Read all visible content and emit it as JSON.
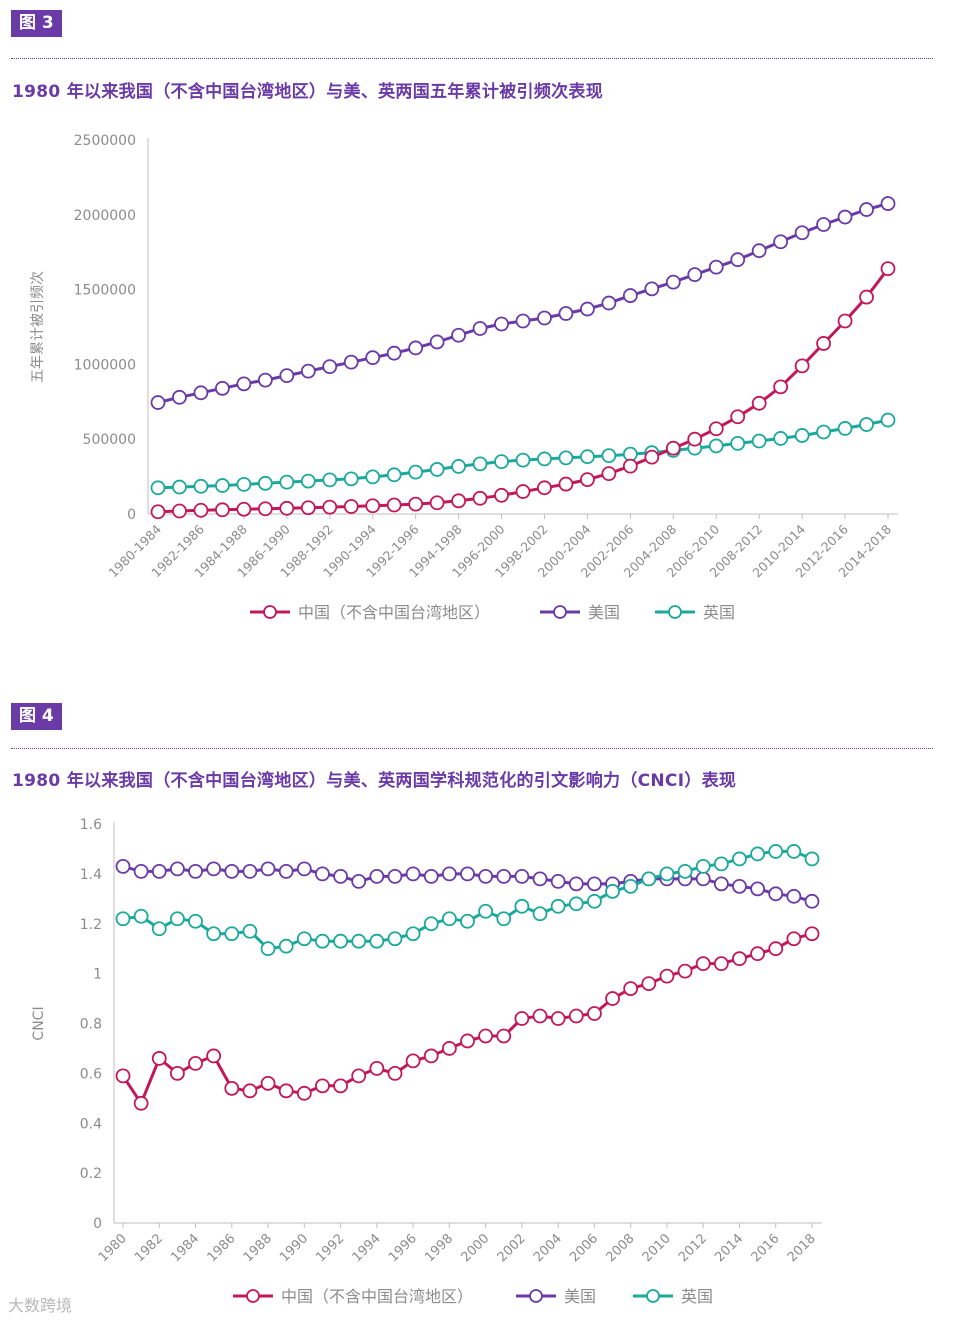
{
  "figure3": {
    "tag": "图 3",
    "title": "1980 年以来我国（不含中国台湾地区）与美、英两国五年累计被引频次表现"
  },
  "figure4": {
    "tag": "图 4",
    "title": "1980 年以来我国（不含中国台湾地区）与美、英两国学科规范化的引文影响力（CNCI）表现"
  },
  "watermark": "大数跨境",
  "colors": {
    "china": "#c2185b",
    "usa": "#6a3aa6",
    "uk": "#1aa99a",
    "axis": "#bfbfbf",
    "accent": "#6a3aa6"
  },
  "chart_data": [
    {
      "type": "line",
      "ylabel": "五年累计被引频次",
      "xlabel": "",
      "ylim": [
        0,
        2500000
      ],
      "yticks": [
        "0",
        "500000",
        "1000000",
        "1500000",
        "2000000",
        "2500000"
      ],
      "yticks_values": [
        0,
        500000,
        1000000,
        1500000,
        2000000,
        2500000
      ],
      "categories": [
        "1980-1984",
        "1981-1985",
        "1982-1986",
        "1983-1987",
        "1984-1988",
        "1985-1989",
        "1986-1990",
        "1987-1991",
        "1988-1992",
        "1989-1993",
        "1990-1994",
        "1991-1995",
        "1992-1996",
        "1993-1997",
        "1994-1998",
        "1995-1999",
        "1996-2000",
        "1997-2001",
        "1998-2002",
        "1999-2003",
        "2000-2004",
        "2001-2005",
        "2002-2006",
        "2003-2007",
        "2004-2008",
        "2005-2009",
        "2006-2010",
        "2007-2011",
        "2008-2012",
        "2009-2013",
        "2010-2014",
        "2011-2015",
        "2012-2016",
        "2013-2017",
        "2014-2018"
      ],
      "xtick_labels": [
        "1980-1984",
        "1982-1986",
        "1984-1988",
        "1986-1990",
        "1988-1992",
        "1990-1994",
        "1992-1996",
        "1994-1998",
        "1996-2000",
        "1998-2002",
        "2000-2004",
        "2002-2006",
        "2004-2008",
        "2006-2010",
        "2008-2012",
        "2010-2014",
        "2012-2016",
        "2014-2018"
      ],
      "legend": "bottom",
      "series": [
        {
          "name": "中国（不含中国台湾地区）",
          "color_key": "china",
          "values": [
            15000,
            20000,
            25000,
            28000,
            32000,
            35000,
            38000,
            42000,
            46000,
            50000,
            55000,
            60000,
            66000,
            75000,
            88000,
            105000,
            125000,
            150000,
            175000,
            200000,
            230000,
            270000,
            320000,
            380000,
            440000,
            500000,
            570000,
            650000,
            740000,
            850000,
            990000,
            1140000,
            1290000,
            1450000,
            1640000
          ]
        },
        {
          "name": "美国",
          "color_key": "usa",
          "values": [
            745000,
            780000,
            810000,
            840000,
            870000,
            895000,
            925000,
            955000,
            985000,
            1015000,
            1045000,
            1075000,
            1110000,
            1150000,
            1195000,
            1240000,
            1270000,
            1290000,
            1310000,
            1340000,
            1370000,
            1410000,
            1460000,
            1505000,
            1550000,
            1600000,
            1650000,
            1700000,
            1760000,
            1820000,
            1880000,
            1935000,
            1985000,
            2035000,
            2075000
          ]
        },
        {
          "name": "英国",
          "color_key": "uk",
          "values": [
            175000,
            180000,
            185000,
            190000,
            198000,
            205000,
            213000,
            220000,
            228000,
            235000,
            248000,
            262000,
            280000,
            298000,
            318000,
            335000,
            350000,
            360000,
            368000,
            375000,
            383000,
            390000,
            400000,
            410000,
            425000,
            440000,
            455000,
            472000,
            488000,
            505000,
            525000,
            548000,
            572000,
            598000,
            628000
          ]
        }
      ]
    },
    {
      "type": "line",
      "ylabel": "CNCI",
      "xlabel": "",
      "ylim": [
        0,
        1.6
      ],
      "yticks": [
        "0",
        "0.2",
        "0.4",
        "0.6",
        "0.8",
        "1",
        "1.2",
        "1.4",
        "1.6"
      ],
      "yticks_values": [
        0,
        0.2,
        0.4,
        0.6,
        0.8,
        1,
        1.2,
        1.4,
        1.6
      ],
      "x": [
        1980,
        1981,
        1982,
        1983,
        1984,
        1985,
        1986,
        1987,
        1988,
        1989,
        1990,
        1991,
        1992,
        1993,
        1994,
        1995,
        1996,
        1997,
        1998,
        1999,
        2000,
        2001,
        2002,
        2003,
        2004,
        2005,
        2006,
        2007,
        2008,
        2009,
        2010,
        2011,
        2012,
        2013,
        2014,
        2015,
        2016,
        2017,
        2018
      ],
      "xtick_labels": [
        "1980",
        "1982",
        "1984",
        "1986",
        "1988",
        "1990",
        "1992",
        "1994",
        "1996",
        "1998",
        "2000",
        "2002",
        "2004",
        "2006",
        "2008",
        "2010",
        "2012",
        "2014",
        "2016",
        "2018"
      ],
      "legend": "bottom",
      "series": [
        {
          "name": "中国（不含中国台湾地区）",
          "color_key": "china",
          "values": [
            0.59,
            0.48,
            0.66,
            0.6,
            0.64,
            0.67,
            0.54,
            0.53,
            0.56,
            0.53,
            0.52,
            0.55,
            0.55,
            0.59,
            0.62,
            0.6,
            0.65,
            0.67,
            0.7,
            0.73,
            0.75,
            0.75,
            0.82,
            0.83,
            0.82,
            0.83,
            0.84,
            0.9,
            0.94,
            0.96,
            0.99,
            1.01,
            1.04,
            1.04,
            1.06,
            1.08,
            1.1,
            1.14,
            1.16
          ]
        },
        {
          "name": "美国",
          "color_key": "usa",
          "values": [
            1.43,
            1.41,
            1.41,
            1.42,
            1.41,
            1.42,
            1.41,
            1.41,
            1.42,
            1.41,
            1.42,
            1.4,
            1.39,
            1.37,
            1.39,
            1.39,
            1.4,
            1.39,
            1.4,
            1.4,
            1.39,
            1.39,
            1.39,
            1.38,
            1.37,
            1.36,
            1.36,
            1.36,
            1.37,
            1.38,
            1.38,
            1.38,
            1.38,
            1.36,
            1.35,
            1.34,
            1.32,
            1.31,
            1.29
          ]
        },
        {
          "name": "英国",
          "color_key": "uk",
          "values": [
            1.22,
            1.23,
            1.18,
            1.22,
            1.21,
            1.16,
            1.16,
            1.17,
            1.1,
            1.11,
            1.14,
            1.13,
            1.13,
            1.13,
            1.13,
            1.14,
            1.16,
            1.2,
            1.22,
            1.21,
            1.25,
            1.22,
            1.27,
            1.24,
            1.27,
            1.28,
            1.29,
            1.33,
            1.35,
            1.38,
            1.4,
            1.41,
            1.43,
            1.44,
            1.46,
            1.48,
            1.49,
            1.49,
            1.46
          ]
        }
      ]
    }
  ]
}
